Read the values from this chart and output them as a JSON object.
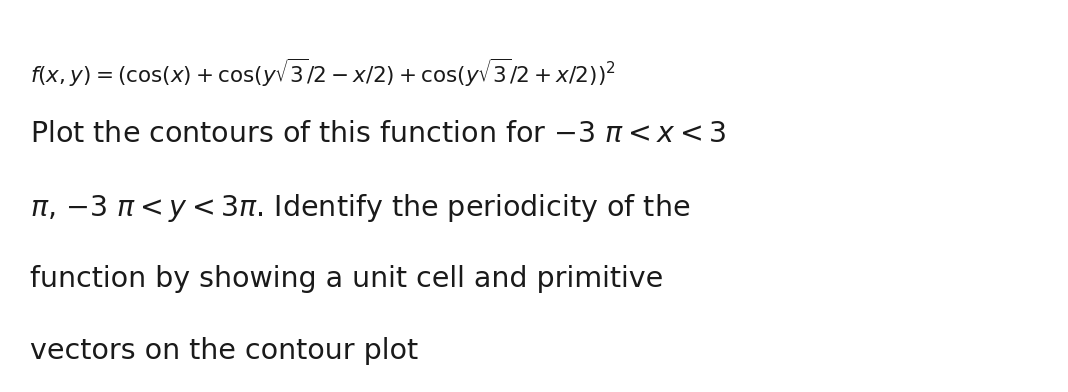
{
  "line1_math": "$f(x, y) = (\\cos(x) + \\cos(y\\sqrt{3}/2 - x/2) + \\cos(y\\sqrt{3}/2 + x/2))^2$",
  "body_line1": "Plot the contours of this function for −3 $\\pi$ < $x$ < 3",
  "body_line2": "$\\pi$, −3 $\\pi$ < $y$ < 3$\\pi$. Identify the periodicity of the",
  "body_line3": "function by showing a unit cell and primitive",
  "body_line4": "vectors on the contour plot",
  "bg_color": "#ffffff",
  "text_color": "#1a1a1a",
  "math_fontsize": 15.5,
  "body_fontsize": 20.5,
  "fig_width": 10.68,
  "fig_height": 3.92,
  "dpi": 100
}
